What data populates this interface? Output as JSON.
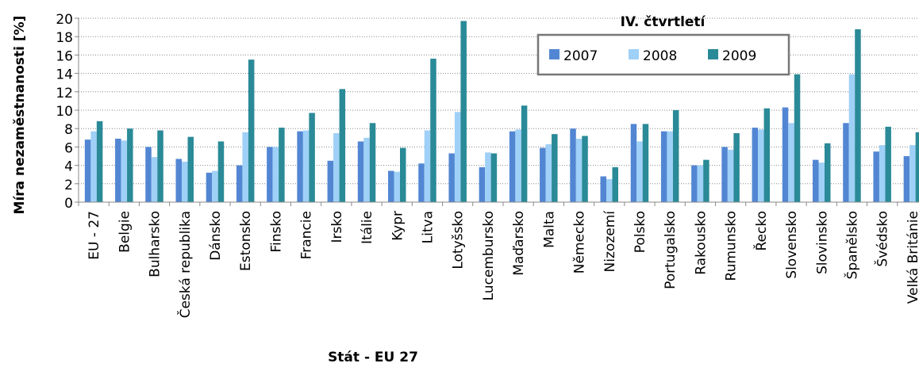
{
  "chart_data": {
    "type": "bar",
    "y_label": "Míra nezaměstnanosti [%]",
    "x_label": "Stát - EU 27",
    "legend_title": "IV. čtvrtletí",
    "categories": [
      "EU - 27",
      "Belgie",
      "Bulharsko",
      "Česká republika",
      "Dánsko",
      "Estonsko",
      "Finsko",
      "Francie",
      "Irsko",
      "Itálie",
      "Kypr",
      "Litva",
      "Lotyšsko",
      "Lucembursko",
      "Maďarsko",
      "Malta",
      "Německo",
      "Nizozemí",
      "Polsko",
      "Portugalsko",
      "Rakousko",
      "Rumunsko",
      "Řecko",
      "Slovensko",
      "Slovinsko",
      "Španělsko",
      "Švédsko",
      "Velká Británie"
    ],
    "series": [
      {
        "name": "2007",
        "color": "#5286d3",
        "values": [
          6.8,
          6.9,
          6.0,
          4.7,
          3.2,
          4.0,
          6.0,
          7.7,
          4.5,
          6.6,
          3.4,
          4.2,
          5.3,
          3.8,
          7.7,
          5.9,
          8.0,
          2.8,
          8.5,
          7.7,
          4.0,
          6.0,
          8.1,
          10.3,
          4.6,
          8.6,
          5.5,
          5.0
        ]
      },
      {
        "name": "2008",
        "color": "#9fd0f7",
        "values": [
          7.7,
          6.7,
          4.9,
          4.4,
          3.4,
          7.6,
          6.0,
          7.8,
          7.5,
          7.0,
          3.3,
          7.8,
          9.8,
          5.4,
          7.9,
          6.3,
          6.9,
          2.5,
          6.6,
          7.7,
          4.0,
          5.7,
          7.9,
          8.6,
          4.3,
          13.9,
          6.2,
          6.2
        ]
      },
      {
        "name": "2009",
        "color": "#2a8a97",
        "values": [
          8.8,
          8.0,
          7.8,
          7.1,
          6.6,
          15.5,
          8.1,
          9.7,
          12.3,
          8.6,
          5.9,
          15.6,
          19.7,
          5.3,
          10.5,
          7.4,
          7.2,
          3.8,
          8.5,
          10.0,
          4.6,
          7.5,
          10.2,
          13.9,
          6.4,
          18.8,
          8.2,
          7.6
        ]
      }
    ],
    "ylim": [
      0,
      20
    ],
    "yticks": [
      0,
      2,
      4,
      6,
      8,
      10,
      12,
      14,
      16,
      18,
      20
    ],
    "grid": true
  }
}
